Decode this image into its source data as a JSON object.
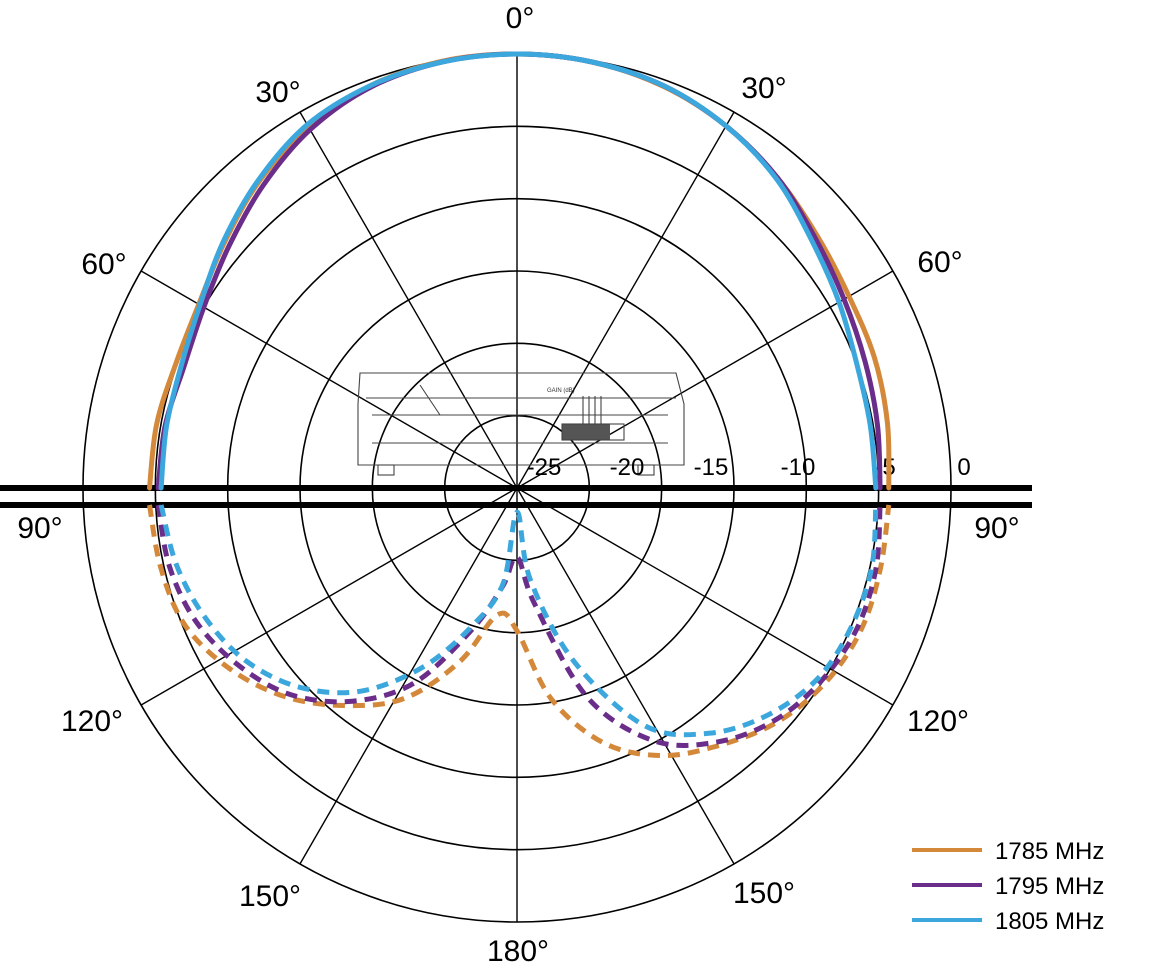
{
  "chart_data": {
    "type": "polar-line",
    "title": "",
    "radial_unit": "dB",
    "radial_range": [
      -30,
      0
    ],
    "ring_labels": [
      "-25",
      "-20",
      "-15",
      "-10",
      "-5",
      "0"
    ],
    "angle_labels": {
      "top": "0°",
      "upper_left_30": "30°",
      "upper_right_30": "30°",
      "left_60": "60°",
      "right_60": "60°",
      "left_90": "90°",
      "right_90": "90°",
      "left_120": "120°",
      "right_120": "120°",
      "left_150": "150°",
      "right_150": "150°",
      "bottom": "180°"
    },
    "angles_deg": [
      -90,
      -80,
      -70,
      -60,
      -50,
      -40,
      -30,
      -20,
      -10,
      0,
      10,
      20,
      30,
      40,
      50,
      60,
      70,
      80,
      90
    ],
    "back_angles_deg": [
      -90,
      -100,
      -110,
      -120,
      -130,
      -140,
      -150,
      -160,
      -170,
      180,
      170,
      160,
      150,
      140,
      130,
      120,
      110,
      100,
      90
    ],
    "legend_position": "bottom-right",
    "series": [
      {
        "name": "1785 MHz",
        "color": "#D4883A",
        "front_db": [
          -4.6,
          -4.7,
          -4.9,
          -4.6,
          -3.6,
          -2.3,
          -1.2,
          -0.4,
          -0.05,
          0,
          -0.1,
          -0.45,
          -1.1,
          -2.0,
          -2.9,
          -3.5,
          -3.7,
          -4.0,
          -4.3
        ],
        "back_db": [
          -4.6,
          -5.0,
          -5.6,
          -7.2,
          -9.3,
          -11.9,
          -14.6,
          -18.5,
          -22.3,
          -21.3,
          -16.4,
          -12.5,
          -10.0,
          -8.3,
          -6.6,
          -5.4,
          -4.7,
          -4.5,
          -4.3
        ]
      },
      {
        "name": "1795 MHz",
        "color": "#6B2D8A",
        "front_db": [
          -5.2,
          -5.3,
          -5.5,
          -5.0,
          -4.0,
          -2.7,
          -1.4,
          -0.5,
          -0.1,
          0,
          -0.1,
          -0.4,
          -1.1,
          -2.0,
          -3.1,
          -3.9,
          -4.4,
          -4.7,
          -4.9
        ],
        "back_db": [
          -5.2,
          -5.6,
          -6.4,
          -7.8,
          -9.6,
          -12.3,
          -15.8,
          -20.8,
          -24.3,
          -26.4,
          -23.1,
          -15.9,
          -11.2,
          -8.6,
          -6.8,
          -5.7,
          -5.0,
          -4.8,
          -4.9
        ]
      },
      {
        "name": "1805 MHz",
        "color": "#3BA7DC",
        "front_db": [
          -5.4,
          -5.4,
          -5.3,
          -4.7,
          -3.5,
          -2.2,
          -1.0,
          -0.4,
          -0.1,
          0,
          -0.1,
          -0.4,
          -1.1,
          -2.1,
          -3.4,
          -4.3,
          -5.0,
          -5.2,
          -5.2
        ],
        "back_db": [
          -5.4,
          -6.1,
          -7.1,
          -8.4,
          -10.4,
          -13.2,
          -17.1,
          -21.2,
          -24.5,
          -29.5,
          -24.8,
          -18.5,
          -12.4,
          -9.4,
          -7.4,
          -6.0,
          -5.4,
          -5.1,
          -5.2
        ]
      }
    ]
  }
}
